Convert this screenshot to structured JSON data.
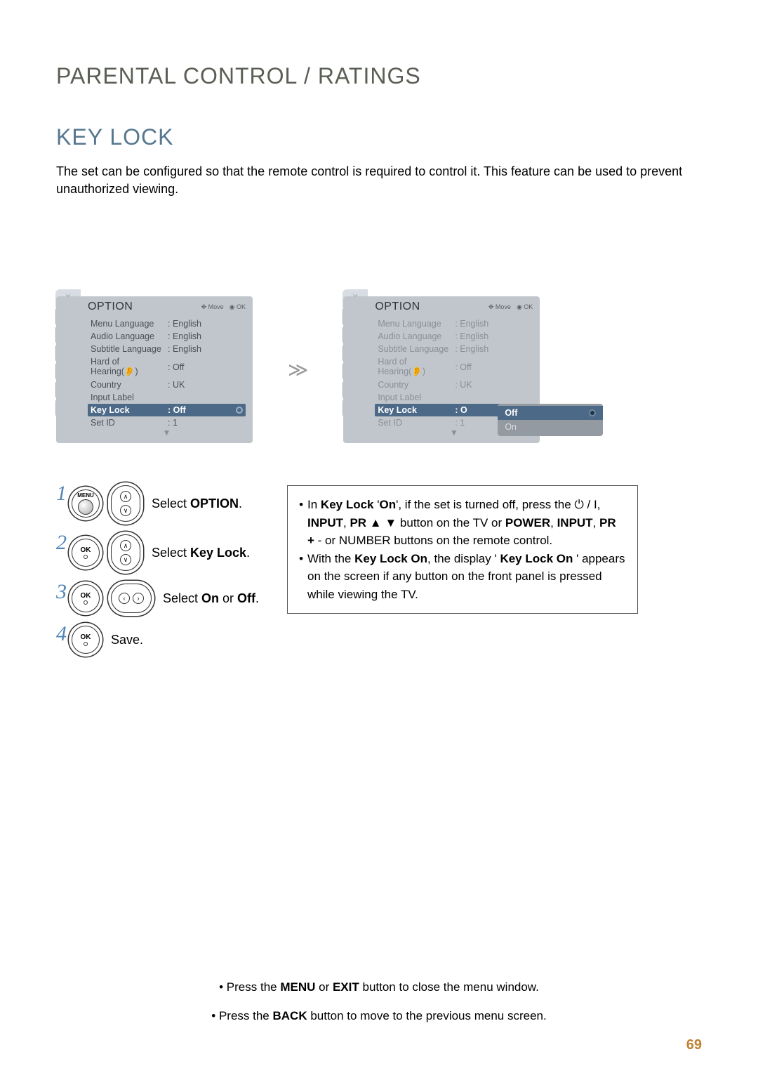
{
  "page_number": "69",
  "headings": {
    "main": "PARENTAL CONTROL / RATINGS",
    "sub": "KEY LOCK"
  },
  "intro": "The set can be configured so that the remote control is required to control it. This feature can be used to prevent unauthorized viewing.",
  "menu": {
    "title": "OPTION",
    "hint_move": "Move",
    "hint_ok": "OK",
    "items": [
      {
        "label": "Menu Language",
        "value": ": English"
      },
      {
        "label": "Audio Language",
        "value": ": English"
      },
      {
        "label": "Subtitle Language",
        "value": ": English"
      },
      {
        "label": "Hard of Hearing(👂)",
        "value": ": Off"
      },
      {
        "label": "Country",
        "value": ": UK"
      },
      {
        "label": "Input Label",
        "value": ""
      },
      {
        "label": "Key Lock",
        "value": ": Off",
        "selected": true
      },
      {
        "label": "Set ID",
        "value": ": 1"
      }
    ]
  },
  "menu_right": {
    "keylock_partial": ": O",
    "setid_value": ": 1"
  },
  "popup": {
    "off": "Off",
    "on": "On"
  },
  "steps": [
    {
      "num": "1",
      "btn": "MENU",
      "text_pre": "Select ",
      "text_bold": "OPTION",
      "text_post": "."
    },
    {
      "num": "2",
      "btn": "OK",
      "text_pre": "Select ",
      "text_bold": "Key Lock",
      "text_post": "."
    },
    {
      "num": "3",
      "btn": "OK",
      "text_pre": "Select ",
      "text_bold": "On",
      "text_mid": " or ",
      "text_bold2": "Off",
      "text_post": "."
    },
    {
      "num": "4",
      "btn": "OK",
      "text_pre": "Save.",
      "text_bold": "",
      "text_post": ""
    }
  ],
  "infobox": {
    "line1_a": "In ",
    "line1_b": "Key Lock",
    "line1_c": " '",
    "line1_d": "On",
    "line1_e": "', if the set is turned off, press the ⏻ / I, ",
    "line1_f": "INPUT",
    "line1_g": ", ",
    "line1_h": "PR ▲ ▼",
    "line1_i": " button on the TV or ",
    "line1_j": "POWER",
    "line1_k": ", ",
    "line1_l": "INPUT",
    "line1_m": ", ",
    "line1_n": "PR +",
    "line1_o": " - or NUMBER buttons on the remote control.",
    "line2_a": "With the ",
    "line2_b": "Key Lock On",
    "line2_c": ", the display ' ",
    "line2_d": "Key Lock On",
    "line2_e": " ' appears on the screen if any button on the front panel is pressed while viewing the TV."
  },
  "bottom": {
    "note1_a": "Press the ",
    "note1_b": "MENU",
    "note1_c": " or ",
    "note1_d": "EXIT",
    "note1_e": " button to close the menu window.",
    "note2_a": "Press the ",
    "note2_b": "BACK",
    "note2_c": " button to move to the previous menu screen."
  },
  "styling": {
    "title1_fontsize": 32,
    "title1_color": "#5a5f55",
    "title2_fontsize": 32,
    "title2_color": "#567890",
    "intro_fontsize": 18,
    "menu_bg": "#c1c6cc",
    "menu_selected_bg": "#4c6a88",
    "popup_bg": "#949aa2",
    "stepnum_color": "#4f85b5",
    "pagenum_color": "#c08030"
  }
}
